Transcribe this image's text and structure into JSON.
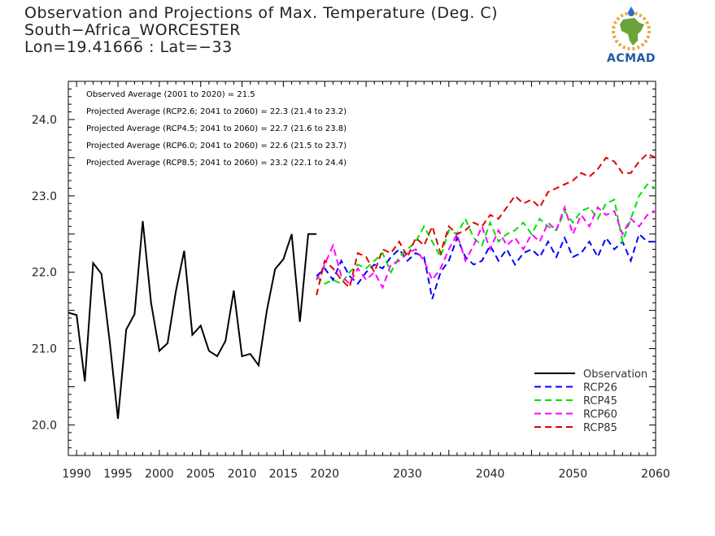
{
  "header": {
    "title_line1": "Observation and Projections of Max. Temperature (Deg. C)",
    "title_line2": "South−Africa_WORCESTER",
    "title_line3": "Lon=19.41666 : Lat=−33"
  },
  "logo": {
    "text": "ACMAD",
    "icon": "africa-map-icon",
    "colors": {
      "map": "#6ca23a",
      "ring": "#e8a640",
      "drop": "#2b6cc4",
      "text": "#1f5aa6"
    }
  },
  "chart_data": {
    "type": "line",
    "xlim": [
      1989,
      2060
    ],
    "ylim": [
      19.6,
      24.5
    ],
    "x_ticks": [
      {
        "value": 1990,
        "label": "1990"
      },
      {
        "value": 1995,
        "label": "1995"
      },
      {
        "value": 2000,
        "label": "2000"
      },
      {
        "value": 2005,
        "label": "2005"
      },
      {
        "value": 2010,
        "label": "2010"
      },
      {
        "value": 2015,
        "label": "2015"
      },
      {
        "value": 2020,
        "label": "2020"
      },
      {
        "value": 2030,
        "label": "2030"
      },
      {
        "value": 2040,
        "label": "2040"
      },
      {
        "value": 2050,
        "label": "2050"
      },
      {
        "value": 2060,
        "label": "2060"
      }
    ],
    "y_ticks": [
      {
        "value": 20.0,
        "label": "20.0"
      },
      {
        "value": 21.0,
        "label": "21.0"
      },
      {
        "value": 22.0,
        "label": "22.0"
      },
      {
        "value": 23.0,
        "label": "23.0"
      },
      {
        "value": 24.0,
        "label": "24.0"
      }
    ],
    "annotations": [
      "Observed Average (2001 to 2020) = 21.5",
      "Projected Average (RCP2.6; 2041 to 2060) = 22.3 (21.4 to 23.2)",
      "Projected Average (RCP4.5; 2041 to 2060) = 22.7 (21.6 to 23.8)",
      "Projected Average (RCP6.0; 2041 to 2060) = 22.6 (21.5 to 23.7)",
      "Projected Average (RCP8.5; 2041 to 2060) = 23.2 (22.1 to 24.4)"
    ],
    "legend_position": "bottom-right",
    "series": [
      {
        "name": "Observation",
        "color": "#000000",
        "dash": "solid",
        "x": [
          1989,
          1990,
          1991,
          1992,
          1993,
          1994,
          1995,
          1996,
          1997,
          1998,
          1999,
          2000,
          2001,
          2002,
          2003,
          2004,
          2005,
          2006,
          2007,
          2008,
          2009,
          2010,
          2011,
          2012,
          2013,
          2014,
          2015,
          2016,
          2017,
          2018,
          2019
        ],
        "y": [
          21.47,
          21.44,
          20.57,
          22.12,
          21.98,
          21.1,
          20.08,
          21.25,
          21.45,
          22.67,
          21.6,
          20.97,
          21.07,
          21.75,
          22.28,
          21.18,
          21.3,
          20.97,
          20.9,
          21.1,
          21.76,
          20.9,
          20.93,
          20.78,
          21.5,
          22.04,
          22.17,
          22.5,
          21.35,
          22.5,
          22.5
        ]
      },
      {
        "name": "RCP26",
        "color": "#0000ff",
        "dash": "dashed",
        "x": [
          2019,
          2020,
          2021,
          2022,
          2023,
          2024,
          2025,
          2026,
          2027,
          2028,
          2029,
          2030,
          2031,
          2032,
          2033,
          2034,
          2035,
          2036,
          2037,
          2038,
          2039,
          2040,
          2041,
          2042,
          2043,
          2044,
          2045,
          2046,
          2047,
          2048,
          2049,
          2050,
          2051,
          2052,
          2053,
          2054,
          2055,
          2056,
          2057,
          2058,
          2059,
          2060
        ],
        "y": [
          21.95,
          22.05,
          21.9,
          22.15,
          21.95,
          21.85,
          22.0,
          22.1,
          22.05,
          22.2,
          22.3,
          22.15,
          22.25,
          22.2,
          21.65,
          22.0,
          22.15,
          22.45,
          22.2,
          22.1,
          22.15,
          22.35,
          22.15,
          22.3,
          22.1,
          22.25,
          22.3,
          22.2,
          22.4,
          22.2,
          22.45,
          22.2,
          22.25,
          22.4,
          22.2,
          22.45,
          22.3,
          22.4,
          22.15,
          22.5,
          22.4,
          22.4
        ]
      },
      {
        "name": "RCP45",
        "color": "#00e000",
        "dash": "dashed",
        "x": [
          2019,
          2020,
          2021,
          2022,
          2023,
          2024,
          2025,
          2026,
          2027,
          2028,
          2029,
          2030,
          2031,
          2032,
          2033,
          2034,
          2035,
          2036,
          2037,
          2038,
          2039,
          2040,
          2041,
          2042,
          2043,
          2044,
          2045,
          2046,
          2047,
          2048,
          2049,
          2050,
          2051,
          2052,
          2053,
          2054,
          2055,
          2056,
          2057,
          2058,
          2059,
          2060
        ],
        "y": [
          21.95,
          21.85,
          21.9,
          21.85,
          22.0,
          22.1,
          22.05,
          22.15,
          22.25,
          22.0,
          22.2,
          22.3,
          22.4,
          22.6,
          22.4,
          22.2,
          22.55,
          22.5,
          22.7,
          22.45,
          22.35,
          22.65,
          22.4,
          22.5,
          22.55,
          22.65,
          22.5,
          22.7,
          22.6,
          22.55,
          22.8,
          22.65,
          22.8,
          22.85,
          22.7,
          22.9,
          22.95,
          22.4,
          22.7,
          23.0,
          23.15,
          23.1
        ]
      },
      {
        "name": "RCP60",
        "color": "#ff00ff",
        "dash": "dashed",
        "x": [
          2019,
          2020,
          2021,
          2022,
          2023,
          2024,
          2025,
          2026,
          2027,
          2028,
          2029,
          2030,
          2031,
          2032,
          2033,
          2034,
          2035,
          2036,
          2037,
          2038,
          2039,
          2040,
          2041,
          2042,
          2043,
          2044,
          2045,
          2046,
          2047,
          2048,
          2049,
          2050,
          2051,
          2052,
          2053,
          2054,
          2055,
          2056,
          2057,
          2058,
          2059,
          2060
        ],
        "y": [
          21.9,
          22.1,
          22.35,
          21.95,
          21.85,
          22.05,
          21.9,
          22.0,
          21.8,
          22.1,
          22.15,
          22.25,
          22.3,
          22.15,
          21.9,
          22.05,
          22.3,
          22.5,
          22.15,
          22.35,
          22.6,
          22.3,
          22.55,
          22.35,
          22.45,
          22.3,
          22.5,
          22.4,
          22.65,
          22.55,
          22.85,
          22.5,
          22.75,
          22.6,
          22.85,
          22.75,
          22.8,
          22.5,
          22.7,
          22.6,
          22.75,
          22.8
        ]
      },
      {
        "name": "RCP85",
        "color": "#e00000",
        "dash": "dashed",
        "x": [
          2019,
          2020,
          2021,
          2022,
          2023,
          2024,
          2025,
          2026,
          2027,
          2028,
          2029,
          2030,
          2031,
          2032,
          2033,
          2034,
          2035,
          2036,
          2037,
          2038,
          2039,
          2040,
          2041,
          2042,
          2043,
          2044,
          2045,
          2046,
          2047,
          2048,
          2049,
          2050,
          2051,
          2052,
          2053,
          2054,
          2055,
          2056,
          2057,
          2058,
          2059,
          2060
        ],
        "y": [
          21.7,
          22.15,
          22.05,
          21.9,
          21.8,
          22.25,
          22.2,
          22.0,
          22.3,
          22.25,
          22.4,
          22.2,
          22.45,
          22.35,
          22.6,
          22.25,
          22.6,
          22.5,
          22.55,
          22.65,
          22.6,
          22.75,
          22.7,
          22.85,
          23.0,
          22.9,
          22.95,
          22.85,
          23.05,
          23.1,
          23.15,
          23.2,
          23.3,
          23.25,
          23.35,
          23.5,
          23.45,
          23.3,
          23.3,
          23.45,
          23.55,
          23.5
        ]
      }
    ]
  }
}
